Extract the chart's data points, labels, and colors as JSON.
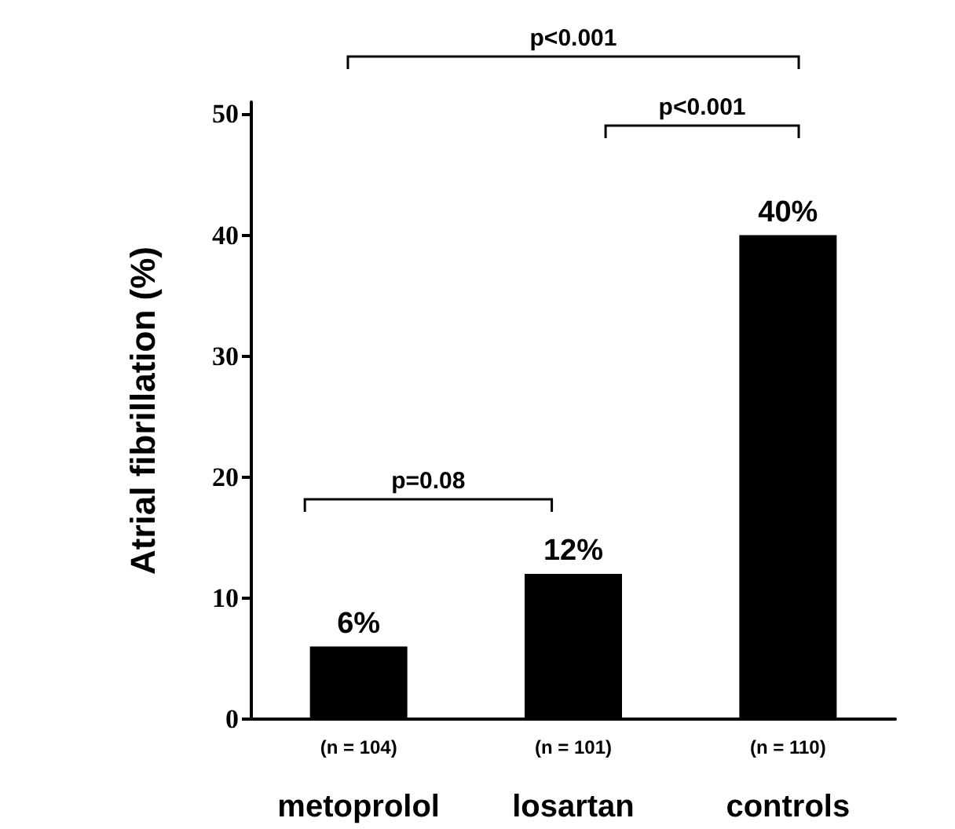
{
  "chart_data": {
    "type": "bar",
    "ylabel": "Atrial fibrillation (%)",
    "categories": [
      "metoprolol",
      "losartan",
      "controls"
    ],
    "values": [
      6,
      12,
      40
    ],
    "color": "#000000",
    "value_labels": [
      "6%",
      "12%",
      "40%"
    ],
    "ylim": [
      0,
      51
    ],
    "yticks": [
      0,
      10,
      20,
      30,
      40,
      50
    ],
    "grid": false,
    "annotations": [
      "(n = 104)",
      "(n = 101)",
      "(n = 110)",
      "p<0.001",
      "p<0.001",
      "p=0.08"
    ]
  }
}
